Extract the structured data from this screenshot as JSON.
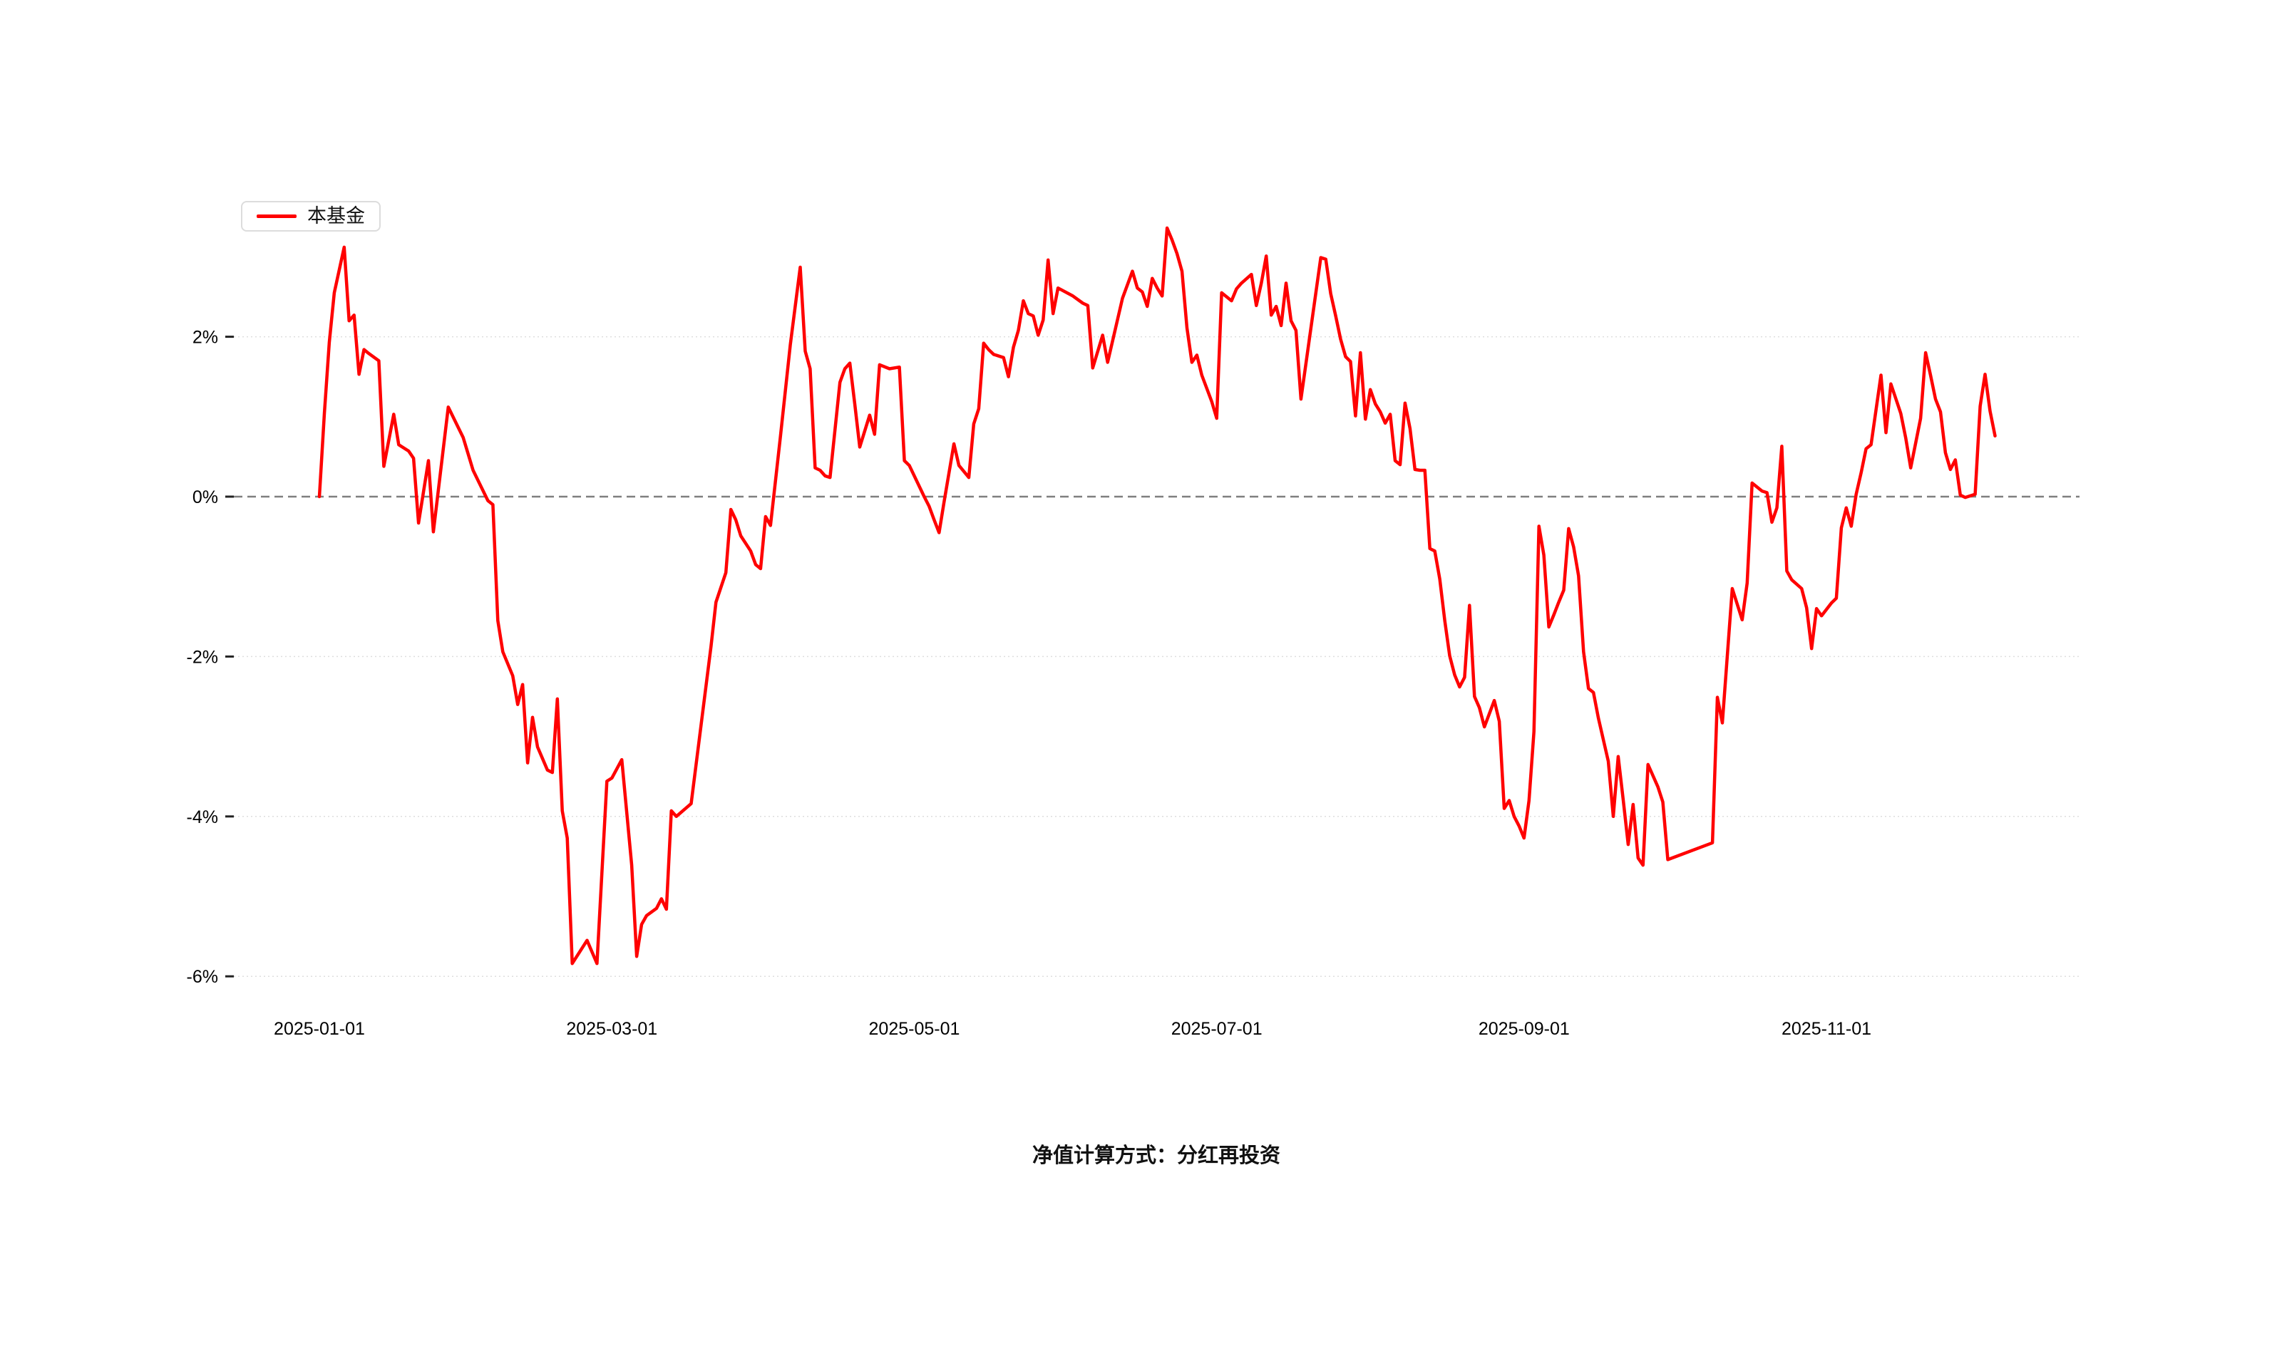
{
  "legend": {
    "series_label": "本基金"
  },
  "footer": {
    "note": "净值计算方式：分红再投资"
  },
  "chart_data": {
    "type": "line",
    "title": "",
    "series": [
      {
        "name": "本基金",
        "color": "#ff0000"
      }
    ],
    "ylabel": "",
    "xlabel": "",
    "unit": "%",
    "grid": true,
    "legend_position": "top-left",
    "y_axis": {
      "range": [
        -6.6,
        3.6
      ],
      "ticks": [
        {
          "label": "2%",
          "value": 2
        },
        {
          "label": "0%",
          "value": 0,
          "zero_line": true
        },
        {
          "label": "-2%",
          "value": -2
        },
        {
          "label": "-4%",
          "value": -4
        },
        {
          "label": "-6%",
          "value": -6
        }
      ]
    },
    "x_axis": {
      "ticks": [
        "2025-01-01",
        "2025-03-01",
        "2025-05-01",
        "2025-07-01",
        "2025-09-01",
        "2025-11-01"
      ]
    },
    "points": [
      [
        "2025-01-01",
        0.0
      ],
      [
        "2025-01-02",
        1.04
      ],
      [
        "2025-01-03",
        1.93
      ],
      [
        "2025-01-04",
        2.55
      ],
      [
        "2025-01-06",
        3.12
      ],
      [
        "2025-01-07",
        2.2
      ],
      [
        "2025-01-08",
        2.27
      ],
      [
        "2025-01-09",
        1.53
      ],
      [
        "2025-01-10",
        1.84
      ],
      [
        "2025-01-11",
        1.79
      ],
      [
        "2025-01-13",
        1.7
      ],
      [
        "2025-01-14",
        0.38
      ],
      [
        "2025-01-16",
        1.03
      ],
      [
        "2025-01-17",
        0.65
      ],
      [
        "2025-01-19",
        0.57
      ],
      [
        "2025-01-20",
        0.48
      ],
      [
        "2025-01-21",
        -0.33
      ],
      [
        "2025-01-23",
        0.45
      ],
      [
        "2025-01-24",
        -0.44
      ],
      [
        "2025-01-27",
        1.12
      ],
      [
        "2025-01-30",
        0.74
      ],
      [
        "2025-02-01",
        0.33
      ],
      [
        "2025-02-04",
        -0.05
      ],
      [
        "2025-02-05",
        -0.1
      ],
      [
        "2025-02-06",
        -1.55
      ],
      [
        "2025-02-07",
        -1.94
      ],
      [
        "2025-02-09",
        -2.24
      ],
      [
        "2025-02-10",
        -2.6
      ],
      [
        "2025-02-11",
        -2.35
      ],
      [
        "2025-02-12",
        -3.33
      ],
      [
        "2025-02-13",
        -2.76
      ],
      [
        "2025-02-14",
        -3.13
      ],
      [
        "2025-02-16",
        -3.42
      ],
      [
        "2025-02-17",
        -3.45
      ],
      [
        "2025-02-18",
        -2.53
      ],
      [
        "2025-02-19",
        -3.93
      ],
      [
        "2025-02-20",
        -4.27
      ],
      [
        "2025-02-21",
        -5.84
      ],
      [
        "2025-02-24",
        -5.55
      ],
      [
        "2025-02-26",
        -5.84
      ],
      [
        "2025-02-28",
        -3.56
      ],
      [
        "2025-03-01",
        -3.52
      ],
      [
        "2025-03-03",
        -3.29
      ],
      [
        "2025-03-05",
        -4.61
      ],
      [
        "2025-03-06",
        -5.75
      ],
      [
        "2025-03-07",
        -5.35
      ],
      [
        "2025-03-08",
        -5.24
      ],
      [
        "2025-03-10",
        -5.15
      ],
      [
        "2025-03-11",
        -5.03
      ],
      [
        "2025-03-12",
        -5.16
      ],
      [
        "2025-03-13",
        -3.93
      ],
      [
        "2025-03-14",
        -4.0
      ],
      [
        "2025-03-17",
        -3.84
      ],
      [
        "2025-03-21",
        -1.87
      ],
      [
        "2025-03-22",
        -1.32
      ],
      [
        "2025-03-24",
        -0.95
      ],
      [
        "2025-03-25",
        -0.16
      ],
      [
        "2025-03-26",
        -0.29
      ],
      [
        "2025-03-27",
        -0.49
      ],
      [
        "2025-03-29",
        -0.68
      ],
      [
        "2025-03-30",
        -0.85
      ],
      [
        "2025-03-31",
        -0.9
      ],
      [
        "2025-04-01",
        -0.25
      ],
      [
        "2025-04-02",
        -0.36
      ],
      [
        "2025-04-04",
        0.75
      ],
      [
        "2025-04-06",
        1.9
      ],
      [
        "2025-04-08",
        2.87
      ],
      [
        "2025-04-09",
        1.82
      ],
      [
        "2025-04-10",
        1.6
      ],
      [
        "2025-04-11",
        0.36
      ],
      [
        "2025-04-12",
        0.33
      ],
      [
        "2025-04-13",
        0.26
      ],
      [
        "2025-04-14",
        0.24
      ],
      [
        "2025-04-16",
        1.43
      ],
      [
        "2025-04-17",
        1.6
      ],
      [
        "2025-04-18",
        1.67
      ],
      [
        "2025-04-19",
        1.16
      ],
      [
        "2025-04-20",
        0.62
      ],
      [
        "2025-04-22",
        1.02
      ],
      [
        "2025-04-23",
        0.78
      ],
      [
        "2025-04-24",
        1.65
      ],
      [
        "2025-04-26",
        1.6
      ],
      [
        "2025-04-28",
        1.62
      ],
      [
        "2025-04-29",
        0.45
      ],
      [
        "2025-04-30",
        0.39
      ],
      [
        "2025-05-03",
        0.0
      ],
      [
        "2025-05-04",
        -0.12
      ],
      [
        "2025-05-05",
        -0.29
      ],
      [
        "2025-05-06",
        -0.45
      ],
      [
        "2025-05-07",
        -0.07
      ],
      [
        "2025-05-09",
        0.66
      ],
      [
        "2025-05-10",
        0.39
      ],
      [
        "2025-05-12",
        0.24
      ],
      [
        "2025-05-13",
        0.91
      ],
      [
        "2025-05-14",
        1.1
      ],
      [
        "2025-05-15",
        1.92
      ],
      [
        "2025-05-16",
        1.84
      ],
      [
        "2025-05-17",
        1.78
      ],
      [
        "2025-05-19",
        1.74
      ],
      [
        "2025-05-20",
        1.5
      ],
      [
        "2025-05-21",
        1.87
      ],
      [
        "2025-05-22",
        2.08
      ],
      [
        "2025-05-23",
        2.45
      ],
      [
        "2025-05-24",
        2.29
      ],
      [
        "2025-05-25",
        2.26
      ],
      [
        "2025-05-26",
        2.02
      ],
      [
        "2025-05-27",
        2.21
      ],
      [
        "2025-05-28",
        2.96
      ],
      [
        "2025-05-29",
        2.29
      ],
      [
        "2025-05-30",
        2.61
      ],
      [
        "2025-06-02",
        2.51
      ],
      [
        "2025-06-04",
        2.42
      ],
      [
        "2025-06-05",
        2.39
      ],
      [
        "2025-06-06",
        1.61
      ],
      [
        "2025-06-08",
        2.02
      ],
      [
        "2025-06-09",
        1.68
      ],
      [
        "2025-06-12",
        2.48
      ],
      [
        "2025-06-14",
        2.82
      ],
      [
        "2025-06-15",
        2.61
      ],
      [
        "2025-06-16",
        2.56
      ],
      [
        "2025-06-17",
        2.38
      ],
      [
        "2025-06-18",
        2.73
      ],
      [
        "2025-06-19",
        2.61
      ],
      [
        "2025-06-20",
        2.51
      ],
      [
        "2025-06-21",
        3.36
      ],
      [
        "2025-06-22",
        3.21
      ],
      [
        "2025-06-23",
        3.04
      ],
      [
        "2025-06-24",
        2.82
      ],
      [
        "2025-06-25",
        2.11
      ],
      [
        "2025-06-26",
        1.68
      ],
      [
        "2025-06-27",
        1.77
      ],
      [
        "2025-06-28",
        1.52
      ],
      [
        "2025-06-30",
        1.19
      ],
      [
        "2025-07-01",
        0.98
      ],
      [
        "2025-07-02",
        2.55
      ],
      [
        "2025-07-04",
        2.45
      ],
      [
        "2025-07-05",
        2.6
      ],
      [
        "2025-07-06",
        2.67
      ],
      [
        "2025-07-08",
        2.78
      ],
      [
        "2025-07-09",
        2.39
      ],
      [
        "2025-07-10",
        2.67
      ],
      [
        "2025-07-11",
        3.01
      ],
      [
        "2025-07-12",
        2.27
      ],
      [
        "2025-07-13",
        2.38
      ],
      [
        "2025-07-14",
        2.14
      ],
      [
        "2025-07-15",
        2.67
      ],
      [
        "2025-07-16",
        2.2
      ],
      [
        "2025-07-17",
        2.08
      ],
      [
        "2025-07-18",
        1.22
      ],
      [
        "2025-07-22",
        2.99
      ],
      [
        "2025-07-23",
        2.97
      ],
      [
        "2025-07-24",
        2.54
      ],
      [
        "2025-07-25",
        2.26
      ],
      [
        "2025-07-26",
        1.97
      ],
      [
        "2025-07-27",
        1.75
      ],
      [
        "2025-07-28",
        1.69
      ],
      [
        "2025-07-29",
        1.01
      ],
      [
        "2025-07-30",
        1.8
      ],
      [
        "2025-07-31",
        0.97
      ],
      [
        "2025-08-01",
        1.34
      ],
      [
        "2025-08-02",
        1.16
      ],
      [
        "2025-08-03",
        1.06
      ],
      [
        "2025-08-04",
        0.92
      ],
      [
        "2025-08-05",
        1.03
      ],
      [
        "2025-08-06",
        0.45
      ],
      [
        "2025-08-07",
        0.4
      ],
      [
        "2025-08-08",
        1.17
      ],
      [
        "2025-08-09",
        0.85
      ],
      [
        "2025-08-10",
        0.34
      ],
      [
        "2025-08-11",
        0.33
      ],
      [
        "2025-08-12",
        0.33
      ],
      [
        "2025-08-13",
        -0.65
      ],
      [
        "2025-08-14",
        -0.68
      ],
      [
        "2025-08-15",
        -1.03
      ],
      [
        "2025-08-16",
        -1.55
      ],
      [
        "2025-08-17",
        -1.99
      ],
      [
        "2025-08-18",
        -2.23
      ],
      [
        "2025-08-19",
        -2.38
      ],
      [
        "2025-08-20",
        -2.26
      ],
      [
        "2025-08-21",
        -1.36
      ],
      [
        "2025-08-22",
        -2.5
      ],
      [
        "2025-08-23",
        -2.64
      ],
      [
        "2025-08-24",
        -2.88
      ],
      [
        "2025-08-26",
        -2.55
      ],
      [
        "2025-08-27",
        -2.81
      ],
      [
        "2025-08-28",
        -3.9
      ],
      [
        "2025-08-29",
        -3.8
      ],
      [
        "2025-08-30",
        -4.0
      ],
      [
        "2025-08-31",
        -4.12
      ],
      [
        "2025-09-01",
        -4.27
      ],
      [
        "2025-09-02",
        -3.8
      ],
      [
        "2025-09-03",
        -2.94
      ],
      [
        "2025-09-04",
        -0.37
      ],
      [
        "2025-09-05",
        -0.73
      ],
      [
        "2025-09-06",
        -1.63
      ],
      [
        "2025-09-07",
        -1.48
      ],
      [
        "2025-09-08",
        -1.32
      ],
      [
        "2025-09-09",
        -1.17
      ],
      [
        "2025-09-10",
        -0.4
      ],
      [
        "2025-09-11",
        -0.63
      ],
      [
        "2025-09-12",
        -0.99
      ],
      [
        "2025-09-13",
        -1.94
      ],
      [
        "2025-09-14",
        -2.4
      ],
      [
        "2025-09-15",
        -2.45
      ],
      [
        "2025-09-16",
        -2.77
      ],
      [
        "2025-09-18",
        -3.31
      ],
      [
        "2025-09-19",
        -4.0
      ],
      [
        "2025-09-20",
        -3.25
      ],
      [
        "2025-09-21",
        -3.79
      ],
      [
        "2025-09-22",
        -4.35
      ],
      [
        "2025-09-23",
        -3.85
      ],
      [
        "2025-09-24",
        -4.52
      ],
      [
        "2025-09-25",
        -4.61
      ],
      [
        "2025-09-26",
        -3.35
      ],
      [
        "2025-09-28",
        -3.63
      ],
      [
        "2025-09-29",
        -3.82
      ],
      [
        "2025-09-30",
        -4.54
      ],
      [
        "2025-10-09",
        -4.33
      ],
      [
        "2025-10-10",
        -2.51
      ],
      [
        "2025-10-11",
        -2.83
      ],
      [
        "2025-10-13",
        -1.15
      ],
      [
        "2025-10-15",
        -1.54
      ],
      [
        "2025-10-16",
        -1.08
      ],
      [
        "2025-10-17",
        0.17
      ],
      [
        "2025-10-19",
        0.07
      ],
      [
        "2025-10-20",
        0.05
      ],
      [
        "2025-10-21",
        -0.32
      ],
      [
        "2025-10-22",
        -0.14
      ],
      [
        "2025-10-23",
        0.63
      ],
      [
        "2025-10-24",
        -0.93
      ],
      [
        "2025-10-25",
        -1.04
      ],
      [
        "2025-10-27",
        -1.15
      ],
      [
        "2025-10-28",
        -1.39
      ],
      [
        "2025-10-29",
        -1.9
      ],
      [
        "2025-10-30",
        -1.4
      ],
      [
        "2025-10-31",
        -1.49
      ],
      [
        "2025-11-02",
        -1.33
      ],
      [
        "2025-11-03",
        -1.27
      ],
      [
        "2025-11-04",
        -0.39
      ],
      [
        "2025-11-05",
        -0.14
      ],
      [
        "2025-11-06",
        -0.37
      ],
      [
        "2025-11-07",
        0.03
      ],
      [
        "2025-11-08",
        0.3
      ],
      [
        "2025-11-09",
        0.6
      ],
      [
        "2025-11-10",
        0.65
      ],
      [
        "2025-11-12",
        1.52
      ],
      [
        "2025-11-13",
        0.8
      ],
      [
        "2025-11-14",
        1.41
      ],
      [
        "2025-11-16",
        1.04
      ],
      [
        "2025-11-17",
        0.73
      ],
      [
        "2025-11-18",
        0.36
      ],
      [
        "2025-11-20",
        0.98
      ],
      [
        "2025-11-21",
        1.8
      ],
      [
        "2025-11-22",
        1.52
      ],
      [
        "2025-11-23",
        1.22
      ],
      [
        "2025-11-24",
        1.06
      ],
      [
        "2025-11-25",
        0.55
      ],
      [
        "2025-11-26",
        0.34
      ],
      [
        "2025-11-27",
        0.46
      ],
      [
        "2025-11-28",
        0.02
      ],
      [
        "2025-11-29",
        -0.01
      ],
      [
        "2025-11-30",
        0.01
      ],
      [
        "2025-12-01",
        0.03
      ],
      [
        "2025-12-02",
        1.13
      ],
      [
        "2025-12-03",
        1.53
      ],
      [
        "2025-12-04",
        1.07
      ],
      [
        "2025-12-05",
        0.76
      ]
    ]
  }
}
